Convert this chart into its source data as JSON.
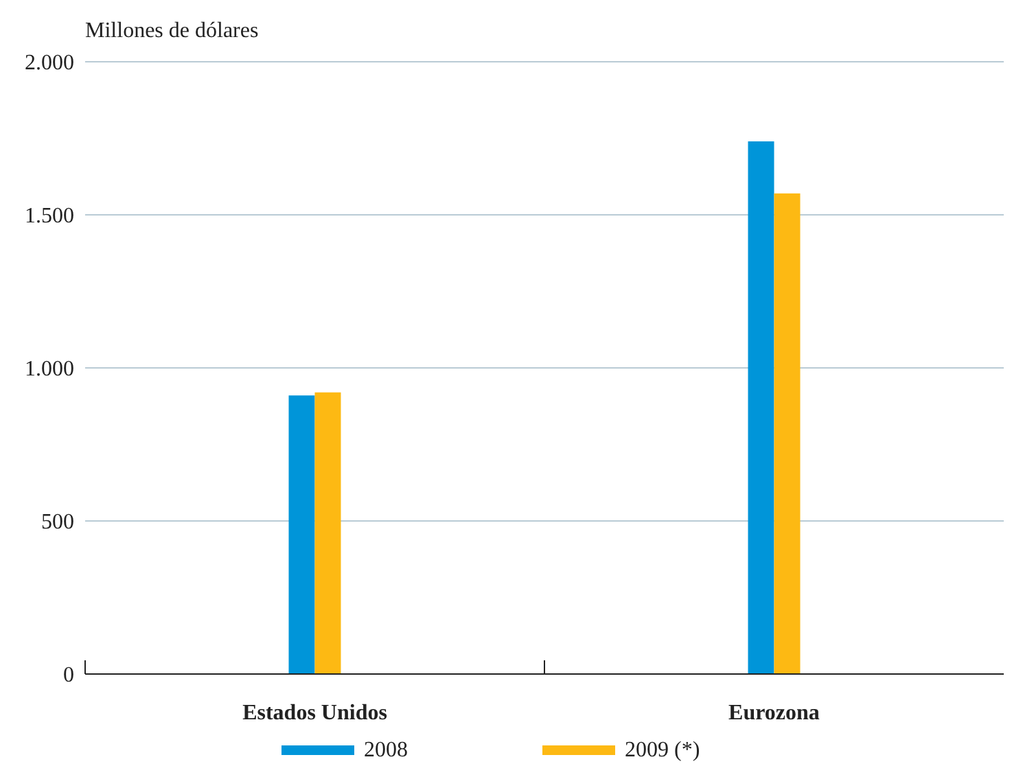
{
  "chart_data": {
    "type": "bar",
    "ylabel": "Millones de dólares",
    "categories": [
      "Estados Unidos",
      "Eurozona"
    ],
    "series": [
      {
        "name": "2008",
        "color": "#0095d9",
        "values": [
          910,
          1740
        ]
      },
      {
        "name": "2009 (*)",
        "color": "#fdb913",
        "values": [
          920,
          1570
        ]
      }
    ],
    "ylim": [
      0,
      2000
    ],
    "yticks": [
      {
        "value": 0,
        "label": "0"
      },
      {
        "value": 500,
        "label": "500"
      },
      {
        "value": 1000,
        "label": "1.000"
      },
      {
        "value": 1500,
        "label": "1.500"
      },
      {
        "value": 2000,
        "label": "2.000"
      }
    ],
    "grid": "y",
    "legend": "bottom"
  }
}
